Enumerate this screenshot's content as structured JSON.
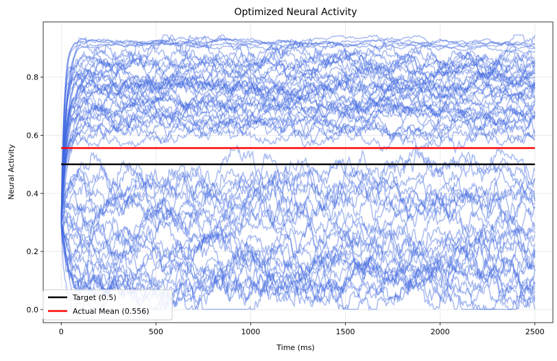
{
  "chart_data": {
    "type": "line",
    "title": "Optimized Neural Activity",
    "xlabel": "Time (ms)",
    "ylabel": "Neural Activity",
    "xlim": [
      -95,
      2595
    ],
    "ylim": [
      -0.045,
      0.99
    ],
    "xticks": [
      0,
      500,
      1000,
      1500,
      2000,
      2500
    ],
    "yticks": [
      0.0,
      0.2,
      0.4,
      0.6,
      0.8
    ],
    "grid": true,
    "legend_position": "lower-left",
    "neuron_trace_color": "#4169e1",
    "neuron_trace_opacity": 0.45,
    "neuron_traces": {
      "duration": 2500,
      "start_level": 0.3,
      "steady_levels": [
        0.92,
        0.925,
        0.915,
        0.91,
        0.905,
        0.88,
        0.87,
        0.86,
        0.855,
        0.85,
        0.84,
        0.83,
        0.82,
        0.81,
        0.8,
        0.79,
        0.78,
        0.775,
        0.77,
        0.765,
        0.76,
        0.75,
        0.745,
        0.74,
        0.73,
        0.72,
        0.71,
        0.7,
        0.69,
        0.68,
        0.67,
        0.66,
        0.65,
        0.64,
        0.63,
        0.62,
        0.61,
        0.6,
        0.48,
        0.46,
        0.44,
        0.42,
        0.4,
        0.38,
        0.36,
        0.34,
        0.32,
        0.3,
        0.28,
        0.26,
        0.24,
        0.22,
        0.2,
        0.18,
        0.16,
        0.14,
        0.13,
        0.12,
        0.11,
        0.1,
        0.09,
        0.08,
        0.07,
        0.06,
        0.05
      ]
    },
    "series": [
      {
        "name": "Target (0.5)",
        "x": [
          0,
          2500
        ],
        "y": [
          0.5,
          0.5
        ],
        "color": "#000000"
      },
      {
        "name": "Actual Mean (0.556)",
        "x": [
          0,
          2500
        ],
        "y": [
          0.556,
          0.556
        ],
        "color": "#ff0000"
      }
    ]
  }
}
